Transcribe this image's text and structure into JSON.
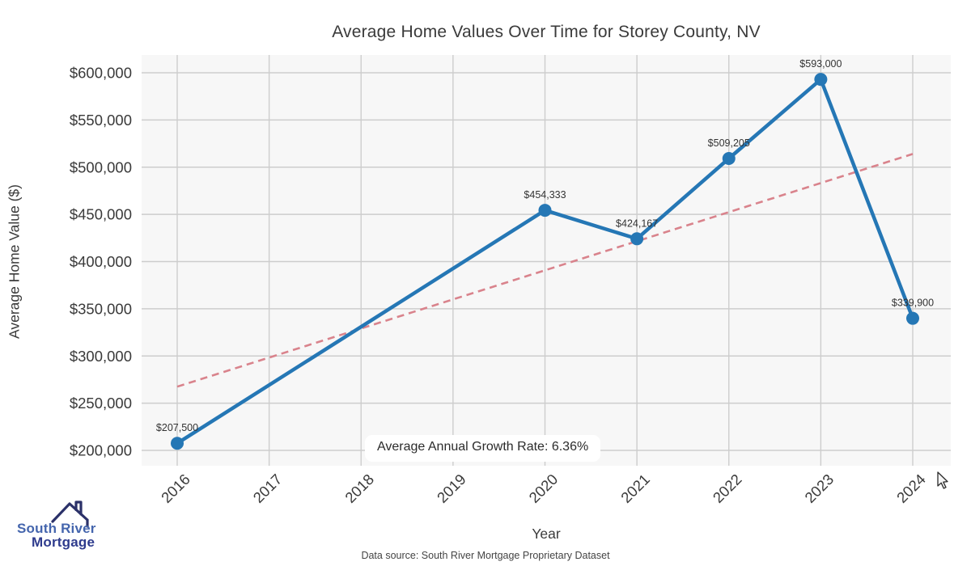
{
  "title": "Average Home Values Over Time for Storey County, NV",
  "source_note": "Data source: South River Mortgage Proprietary Dataset",
  "logo": {
    "line1": "South River",
    "line2": "Mortgage"
  },
  "chart_data": {
    "type": "line",
    "title": "Average Home Values Over Time for Storey County, NV",
    "xlabel": "Year",
    "ylabel": "Average Home Value ($)",
    "x": [
      2016,
      2020,
      2021,
      2022,
      2023,
      2024
    ],
    "values": [
      207500,
      454333,
      424167,
      509205,
      593000,
      339900
    ],
    "point_labels": [
      "$207,500",
      "$454,333",
      "$424,167",
      "$509,205",
      "$593,000",
      "$339,900"
    ],
    "trend_line": {
      "style": "dashed",
      "x": [
        2016,
        2024
      ],
      "values": [
        267500,
        514000
      ]
    },
    "annotation": "Average Annual Growth Rate: 6.36%",
    "growth_rate_pct": 6.36,
    "x_ticks": [
      2016,
      2017,
      2018,
      2019,
      2020,
      2021,
      2022,
      2023,
      2024
    ],
    "x_tick_labels": [
      "2016",
      "2017",
      "2018",
      "2019",
      "2020",
      "2021",
      "2022",
      "2023",
      "2024"
    ],
    "y_ticks": [
      200000,
      250000,
      300000,
      350000,
      400000,
      450000,
      500000,
      550000,
      600000
    ],
    "y_tick_labels": [
      "$200,000",
      "$250,000",
      "$300,000",
      "$350,000",
      "$400,000",
      "$450,000",
      "$500,000",
      "$550,000",
      "$600,000"
    ],
    "ylim": [
      200000,
      600000
    ],
    "grid": true,
    "legend": "none",
    "colors": {
      "line": "#2577b5",
      "trend": "#d9838c",
      "grid": "#cdcdcd",
      "plot_bg": "#f7f7f7",
      "figure_bg": "#ffffff",
      "text": "#3a3a3a",
      "point_label": "#333333",
      "logo_primary": "#4465ad",
      "logo_secondary": "#2e3b8d",
      "logo_icon": "#2b3169"
    }
  }
}
